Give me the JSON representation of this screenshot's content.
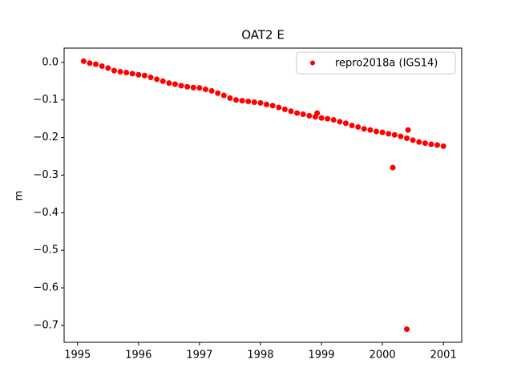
{
  "chart_data": {
    "type": "scatter",
    "title": "OAT2 E",
    "y_label": "m",
    "xlim": [
      1994.78,
      2001.3
    ],
    "ylim": [
      -0.745,
      0.038
    ],
    "xticks": [
      1995,
      1996,
      1997,
      1998,
      1999,
      2000,
      2001
    ],
    "yticks": [
      {
        "value": 0,
        "label": "0.0"
      },
      {
        "value": -0.1,
        "label": "−0.1"
      },
      {
        "value": -0.2,
        "label": "−0.2"
      },
      {
        "value": -0.3,
        "label": "−0.3"
      },
      {
        "value": -0.4,
        "label": "−0.4"
      },
      {
        "value": -0.5,
        "label": "−0.5"
      },
      {
        "value": -0.6,
        "label": "−0.6"
      },
      {
        "value": -0.7,
        "label": "−0.7"
      }
    ],
    "legend": "upper right",
    "series": [
      {
        "name": "repro2018a (IGS14)",
        "color": "#ff0000",
        "x": [
          1995.1,
          1995.2,
          1995.3,
          1995.4,
          1995.5,
          1995.6,
          1995.7,
          1995.8,
          1995.9,
          1996.0,
          1996.1,
          1996.2,
          1996.3,
          1996.4,
          1996.5,
          1996.6,
          1996.7,
          1996.8,
          1996.9,
          1997.0,
          1997.1,
          1997.2,
          1997.3,
          1997.4,
          1997.5,
          1997.6,
          1997.7,
          1997.8,
          1997.9,
          1998.0,
          1998.1,
          1998.2,
          1998.3,
          1998.4,
          1998.5,
          1998.6,
          1998.7,
          1998.8,
          1998.9,
          1999.0,
          1999.1,
          1999.2,
          1999.3,
          1999.4,
          1999.5,
          1999.6,
          1999.7,
          1999.8,
          1999.9,
          2000.0,
          2000.1,
          2000.2,
          2000.3,
          2000.4,
          2000.5,
          2000.6,
          2000.7,
          2000.8,
          2000.9,
          2001.0,
          1998.93,
          2000.17,
          2000.42,
          2000.4
        ],
        "values": [
          0.003,
          -0.002,
          -0.005,
          -0.01,
          -0.015,
          -0.022,
          -0.025,
          -0.027,
          -0.03,
          -0.033,
          -0.035,
          -0.04,
          -0.045,
          -0.05,
          -0.055,
          -0.058,
          -0.062,
          -0.065,
          -0.067,
          -0.068,
          -0.072,
          -0.076,
          -0.082,
          -0.088,
          -0.095,
          -0.1,
          -0.102,
          -0.104,
          -0.106,
          -0.108,
          -0.112,
          -0.115,
          -0.12,
          -0.125,
          -0.13,
          -0.135,
          -0.138,
          -0.142,
          -0.145,
          -0.148,
          -0.15,
          -0.153,
          -0.158,
          -0.162,
          -0.168,
          -0.172,
          -0.177,
          -0.18,
          -0.184,
          -0.186,
          -0.19,
          -0.193,
          -0.197,
          -0.202,
          -0.207,
          -0.212,
          -0.215,
          -0.218,
          -0.22,
          -0.223,
          -0.135,
          -0.28,
          -0.18,
          -0.71
        ]
      }
    ]
  }
}
